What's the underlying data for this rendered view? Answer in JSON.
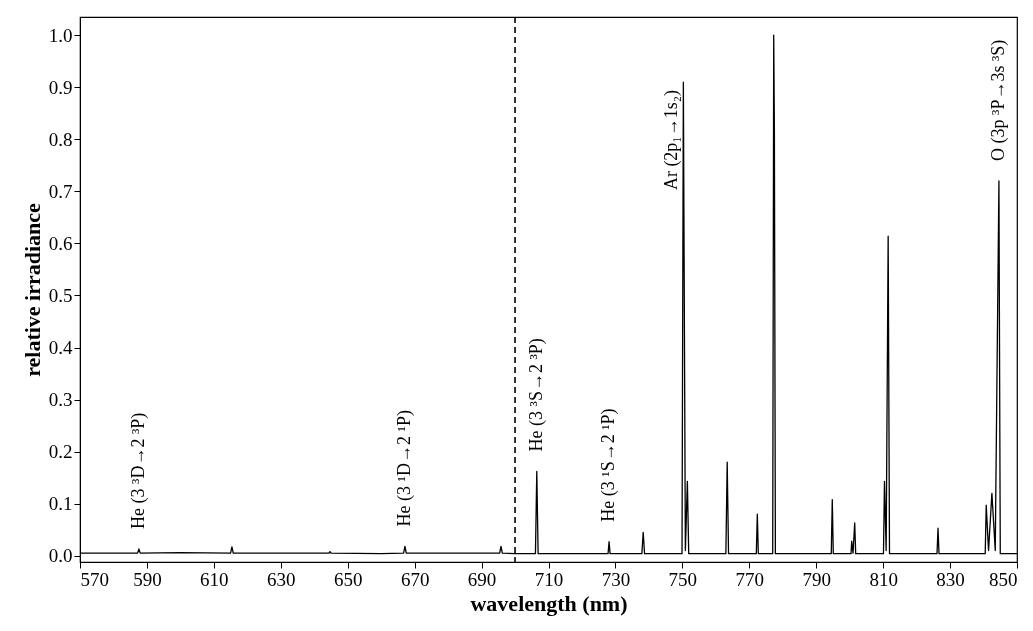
{
  "chart_data": {
    "type": "line",
    "xlabel": "wavelength (nm)",
    "ylabel": "relative irradiance",
    "xlim": [
      570,
      850
    ],
    "ylim": [
      -0.012,
      1.035
    ],
    "xticks": [
      570,
      590,
      610,
      630,
      650,
      670,
      690,
      710,
      730,
      750,
      770,
      790,
      810,
      830,
      850
    ],
    "yticks": [
      {
        "value": 0,
        "label": "0.0"
      },
      0.1,
      0.2,
      0.3,
      0.4,
      0.5,
      0.6,
      0.7,
      0.8,
      0.9,
      {
        "value": 1,
        "label": "1.0"
      }
    ],
    "grid": false,
    "line_style": "solid",
    "series": [
      {
        "color": "#000000",
        "x": [
          570,
          587.2,
          587.6,
          588.0,
          600,
          615.0,
          615.4,
          615.8,
          630,
          644.4,
          644.7,
          645.0,
          660,
          666.7,
          667.1,
          667.5,
          680,
          695.4,
          695.8,
          696.2,
          700,
          706.1,
          706.5,
          706.9,
          715,
          727.8,
          728.1,
          728.4,
          737.9,
          738.3,
          738.7,
          749.9,
          750.3,
          750.9,
          751.5,
          751.9,
          763.0,
          763.4,
          763.8,
          772.1,
          772.4,
          772.7,
          777.0,
          777.3,
          777.5,
          777.8,
          794.5,
          794.8,
          795.1,
          800.4,
          800.6,
          801.0,
          801.5,
          801.8,
          810.1,
          810.4,
          810.9,
          811.5,
          811.9,
          826.1,
          826.4,
          826.7,
          840.5,
          840.8,
          841.5,
          842.5,
          843.5,
          844.6,
          845.0,
          850
        ],
        "values": [
          0.005,
          0.005,
          0.013,
          0.005,
          0.006,
          0.005,
          0.017,
          0.005,
          0.005,
          0.005,
          0.008,
          0.005,
          0.004,
          0.005,
          0.018,
          0.005,
          0.005,
          0.005,
          0.018,
          0.005,
          0.004,
          0.004,
          0.162,
          0.004,
          0.004,
          0.004,
          0.027,
          0.004,
          0.004,
          0.045,
          0.004,
          0.004,
          0.91,
          0.01,
          0.143,
          0.004,
          0.004,
          0.18,
          0.004,
          0.004,
          0.08,
          0.004,
          0.004,
          1.0,
          0.82,
          0.004,
          0.004,
          0.108,
          0.004,
          0.004,
          0.028,
          0.005,
          0.063,
          0.004,
          0.004,
          0.143,
          0.01,
          0.614,
          0.004,
          0.004,
          0.053,
          0.004,
          0.004,
          0.097,
          0.01,
          0.12,
          0.01,
          0.72,
          0.004,
          0.004
        ]
      }
    ],
    "ref_lines": [
      {
        "axis": "x",
        "value": 700,
        "color": "#000000",
        "line_style": "dashed"
      }
    ],
    "annotations": [
      {
        "text": "He (3 ³D→2 ³P)",
        "x": 587.6,
        "y": 0.013
      },
      {
        "text": "He (3 ¹D→2 ¹P)",
        "x": 667.1,
        "y": 0.018
      },
      {
        "text": "He (3 ³S→2 ³P)",
        "x": 706.5,
        "y": 0.162
      },
      {
        "text": "He (3 ¹S→2 ¹P)",
        "x": 728.1,
        "y": 0.027
      },
      {
        "text": "Ar (2p₁→1s₂)",
        "x": 750.3,
        "y": 0.91
      },
      {
        "text": "O (3p ³P→3s ³S)",
        "x": 844.6,
        "y": 0.72
      }
    ]
  }
}
